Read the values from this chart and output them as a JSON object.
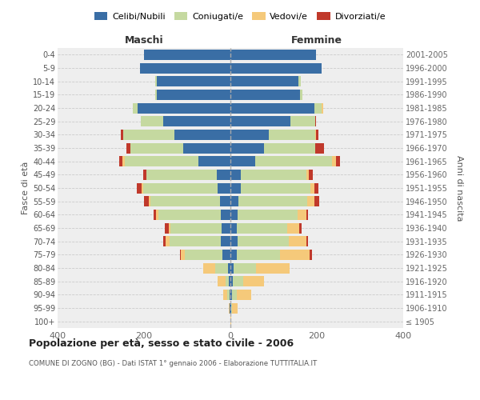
{
  "age_groups": [
    "100+",
    "95-99",
    "90-94",
    "85-89",
    "80-84",
    "75-79",
    "70-74",
    "65-69",
    "60-64",
    "55-59",
    "50-54",
    "45-49",
    "40-44",
    "35-39",
    "30-34",
    "25-29",
    "20-24",
    "15-19",
    "10-14",
    "5-9",
    "0-4"
  ],
  "birth_years": [
    "≤ 1905",
    "1906-1910",
    "1911-1915",
    "1916-1920",
    "1921-1925",
    "1926-1930",
    "1931-1935",
    "1936-1940",
    "1941-1945",
    "1946-1950",
    "1951-1955",
    "1956-1960",
    "1961-1965",
    "1966-1970",
    "1971-1975",
    "1976-1980",
    "1981-1985",
    "1986-1990",
    "1991-1995",
    "1996-2000",
    "2001-2005"
  ],
  "colors": {
    "celibi": "#3a6ea5",
    "coniugati": "#c5d9a0",
    "vedovi": "#f5c97a",
    "divorziati": "#c0392b"
  },
  "maschi": {
    "celibi": [
      0,
      1,
      2,
      4,
      5,
      18,
      22,
      20,
      22,
      25,
      30,
      32,
      75,
      110,
      130,
      155,
      215,
      170,
      170,
      210,
      200
    ],
    "coniugati": [
      0,
      1,
      5,
      8,
      30,
      88,
      118,
      118,
      145,
      160,
      172,
      162,
      170,
      122,
      118,
      52,
      10,
      4,
      4,
      0,
      0
    ],
    "vedovi": [
      0,
      2,
      10,
      18,
      28,
      8,
      10,
      5,
      5,
      3,
      3,
      0,
      5,
      0,
      0,
      0,
      0,
      0,
      0,
      0,
      0
    ],
    "divorziati": [
      0,
      0,
      0,
      0,
      0,
      3,
      5,
      8,
      5,
      12,
      12,
      8,
      8,
      8,
      5,
      0,
      0,
      0,
      0,
      0,
      0
    ]
  },
  "femmine": {
    "celibi": [
      0,
      1,
      4,
      5,
      7,
      14,
      17,
      14,
      17,
      19,
      24,
      24,
      58,
      78,
      88,
      138,
      195,
      162,
      158,
      212,
      198
    ],
    "coniugati": [
      0,
      3,
      10,
      24,
      52,
      100,
      118,
      118,
      138,
      158,
      162,
      152,
      178,
      118,
      108,
      58,
      17,
      5,
      5,
      0,
      0
    ],
    "vedovi": [
      2,
      12,
      35,
      48,
      78,
      70,
      40,
      28,
      20,
      17,
      8,
      5,
      8,
      0,
      3,
      0,
      3,
      0,
      0,
      0,
      0
    ],
    "divorziati": [
      0,
      0,
      0,
      0,
      0,
      5,
      5,
      5,
      5,
      12,
      10,
      10,
      10,
      20,
      5,
      3,
      0,
      0,
      0,
      0,
      0
    ]
  },
  "title": "Popolazione per età, sesso e stato civile - 2006",
  "subtitle": "COMUNE DI ZOGNO (BG) - Dati ISTAT 1° gennaio 2006 - Elaborazione TUTTITALIA.IT",
  "xlabel_left": "Maschi",
  "xlabel_right": "Femmine",
  "ylabel_left": "Fasce di età",
  "ylabel_right": "Anni di nascita",
  "xlim": 400,
  "bg_color": "#ffffff",
  "plot_bg_color": "#eeeeee"
}
